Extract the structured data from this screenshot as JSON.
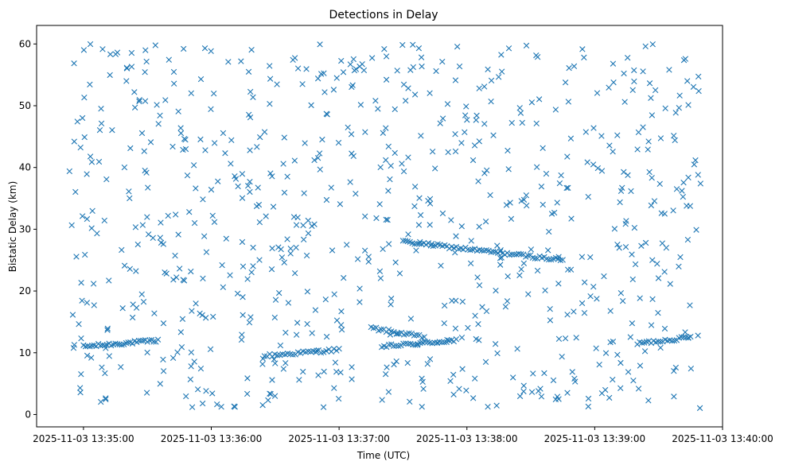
{
  "chart_data": {
    "type": "scatter",
    "title": "Detections in Delay",
    "xlabel": "Time (UTC)",
    "ylabel": "Bistatic Delay (km)",
    "marker": "x",
    "color": "#1f77b4",
    "grid": false,
    "xlim": [
      "2025-11-03 13:34:38",
      "2025-11-03 13:40:00"
    ],
    "ylim": [
      -2,
      63
    ],
    "xticks": [
      "2025-11-03 13:35:00",
      "2025-11-03 13:36:00",
      "2025-11-03 13:37:00",
      "2025-11-03 13:38:00",
      "2025-11-03 13:39:00",
      "2025-11-03 13:40:00"
    ],
    "yticks": [
      0,
      10,
      20,
      30,
      40,
      50,
      60
    ],
    "tracks": [
      {
        "x0": "2025-11-03 13:35:00",
        "y0": 11.0,
        "x1": "2025-11-03 13:35:35",
        "y1": 12.0,
        "count": 36
      },
      {
        "x0": "2025-11-03 13:36:25",
        "y0": 9.5,
        "x1": "2025-11-03 13:37:00",
        "y1": 10.5,
        "count": 30
      },
      {
        "x0": "2025-11-03 13:37:15",
        "y0": 14.0,
        "x1": "2025-11-03 13:37:40",
        "y1": 12.5,
        "count": 22
      },
      {
        "x0": "2025-11-03 13:37:20",
        "y0": 11.0,
        "x1": "2025-11-03 13:37:55",
        "y1": 12.0,
        "count": 32
      },
      {
        "x0": "2025-11-03 13:37:30",
        "y0": 28.0,
        "x1": "2025-11-03 13:38:45",
        "y1": 25.0,
        "count": 70
      },
      {
        "x0": "2025-11-03 13:39:20",
        "y0": 11.5,
        "x1": "2025-11-03 13:39:45",
        "y1": 12.5,
        "count": 24
      }
    ],
    "clutter": {
      "count": 760,
      "x_start": "2025-11-03 13:34:53",
      "x_end": "2025-11-03 13:39:50",
      "y_min": 1,
      "y_max": 60
    }
  }
}
